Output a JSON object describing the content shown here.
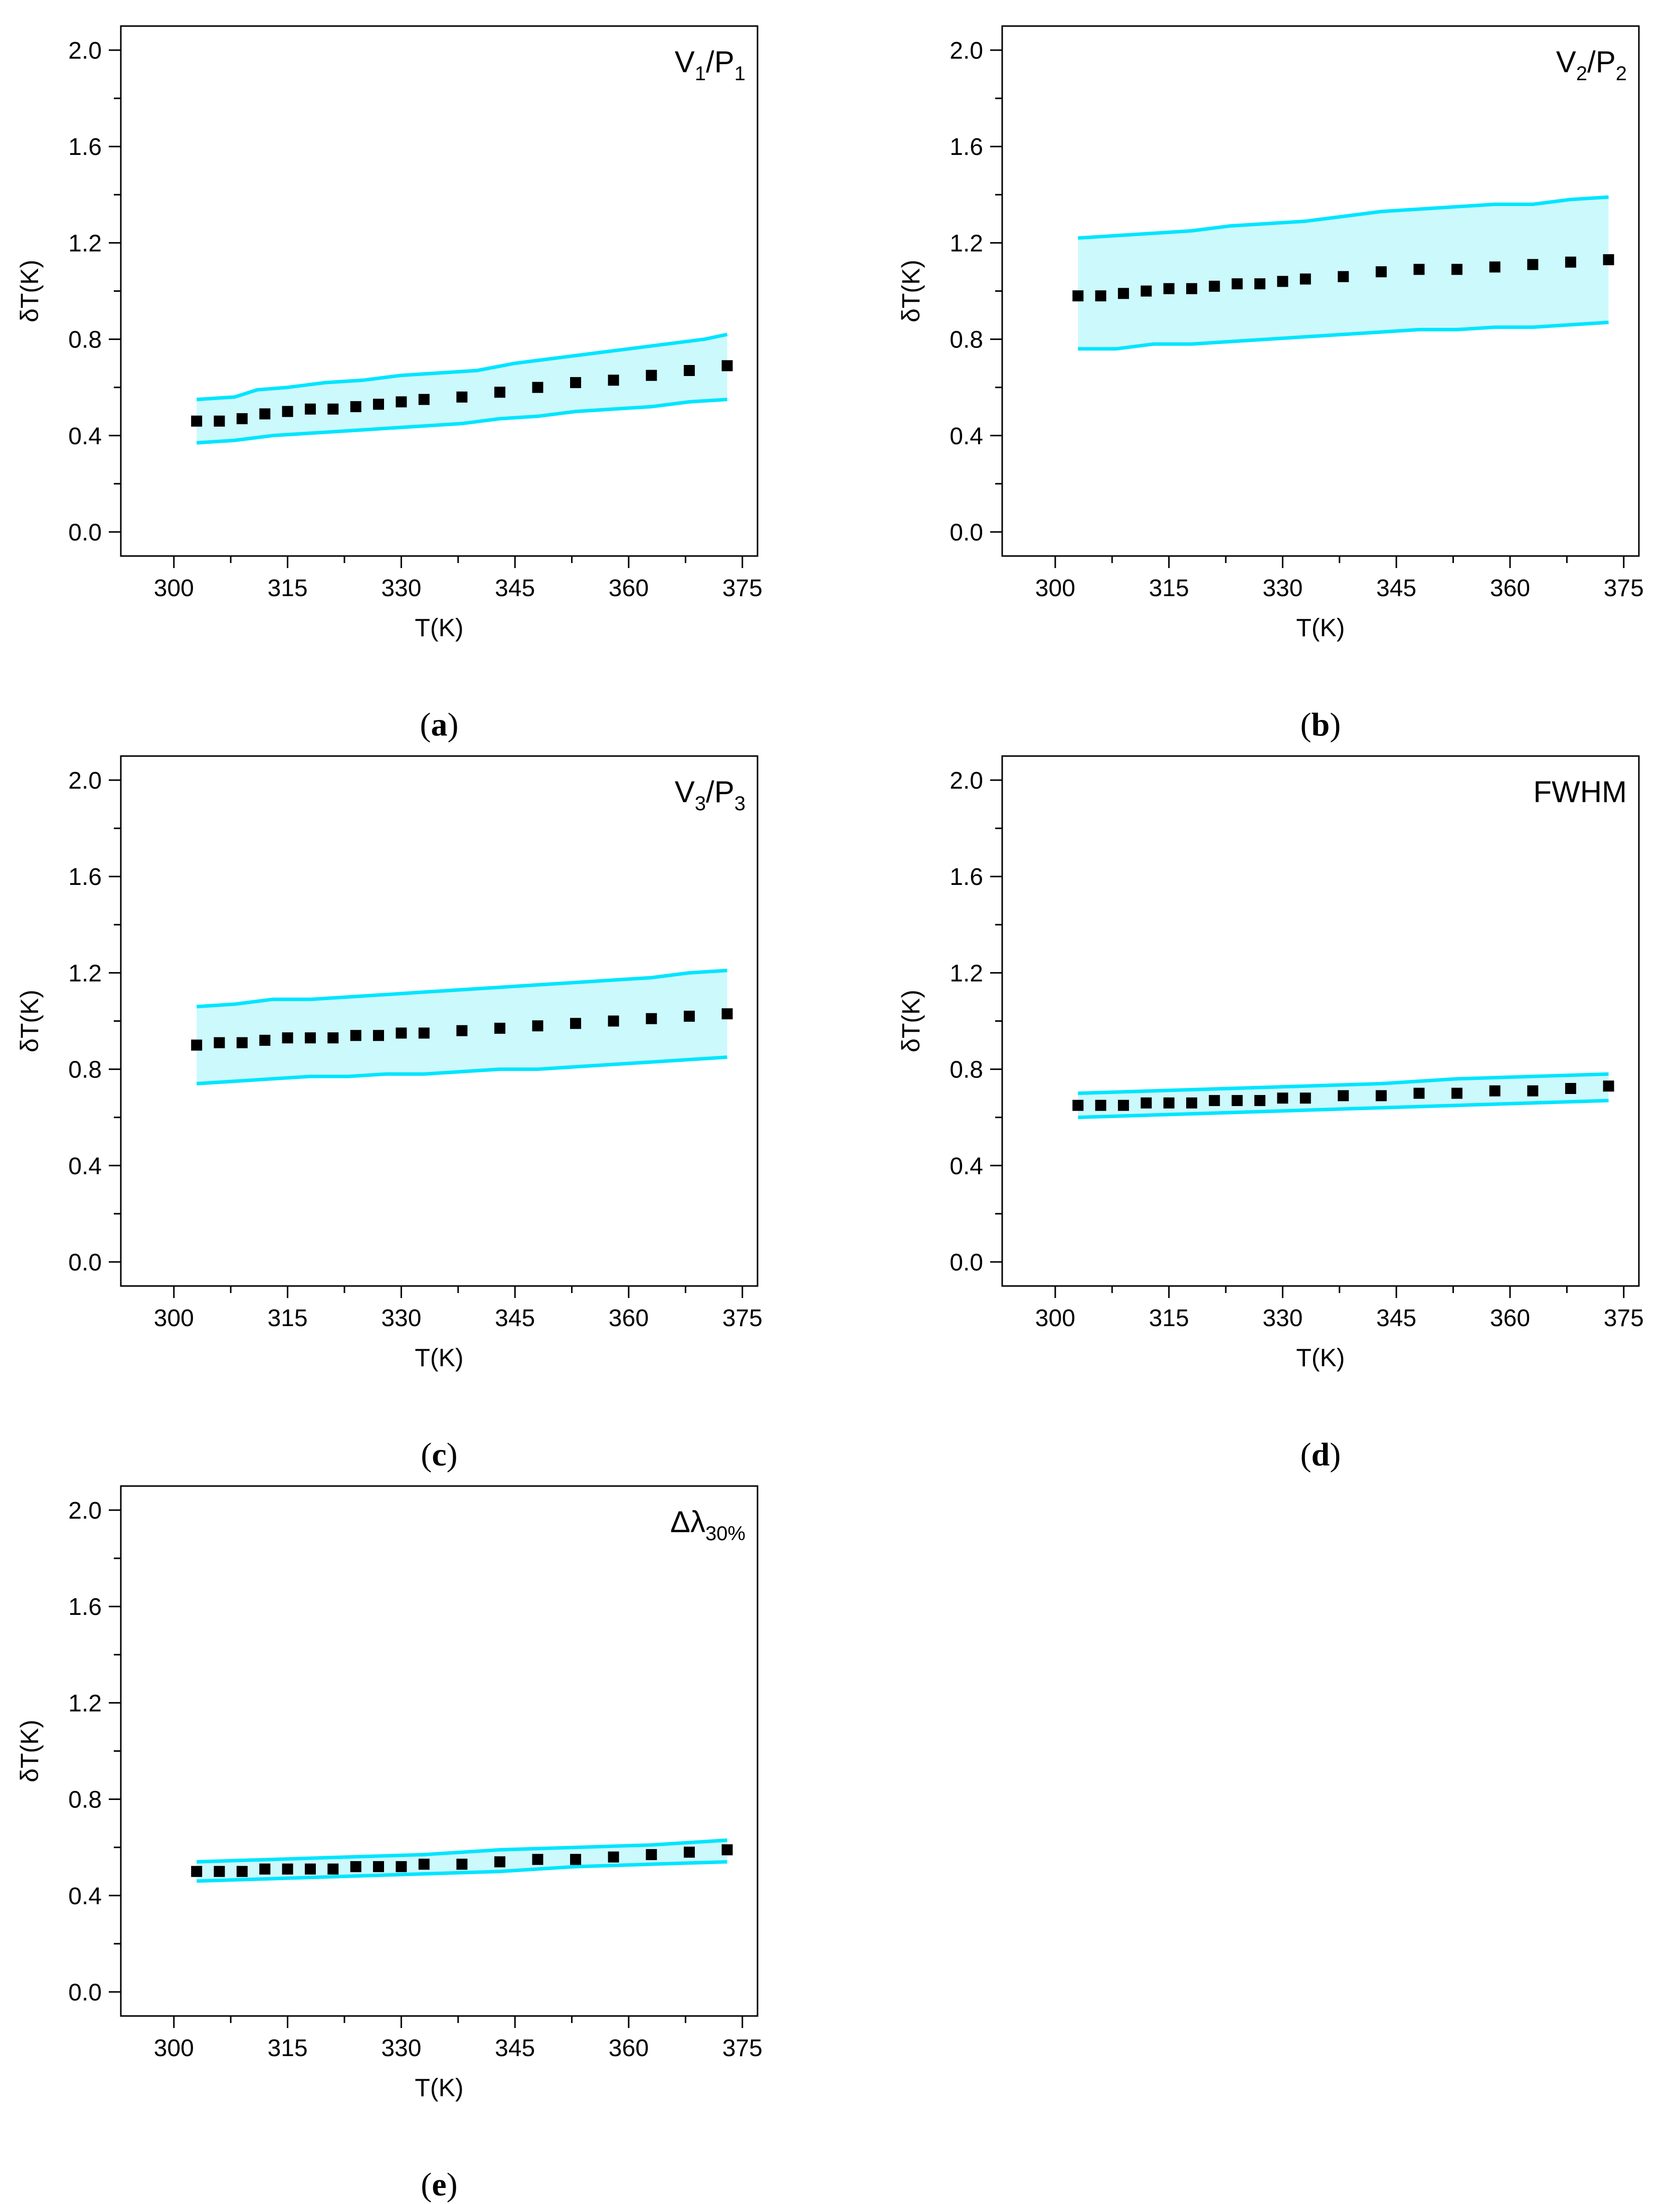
{
  "colors": {
    "band": "#00e5ff",
    "band_fill": "#ccf9fc",
    "marker": "#000000",
    "axis": "#000000"
  },
  "chart_data": [
    {
      "id": "a",
      "type": "scatter",
      "caption": {
        "open": "(",
        "letter": "a",
        "close": ")"
      },
      "label": {
        "main1": "V",
        "sub1": "1",
        "main2": "/P",
        "sub2": "1"
      },
      "xlabel": "T(K)",
      "ylabel": "δT(K)",
      "xlim": [
        293,
        377
      ],
      "ylim": [
        -0.1,
        2.1
      ],
      "xticks": [
        "300",
        "315",
        "330",
        "345",
        "360",
        "375"
      ],
      "yticks": [
        "0.0",
        "0.4",
        "0.8",
        "1.2",
        "1.6",
        "2.0"
      ],
      "series": [
        {
          "name": "δT",
          "x": [
            303,
            306,
            309,
            312,
            315,
            318,
            321,
            324,
            327,
            330,
            333,
            338,
            343,
            348,
            353,
            358,
            363,
            368,
            373
          ],
          "y": [
            0.46,
            0.46,
            0.47,
            0.49,
            0.5,
            0.51,
            0.51,
            0.52,
            0.53,
            0.54,
            0.55,
            0.56,
            0.58,
            0.6,
            0.62,
            0.63,
            0.65,
            0.67,
            0.69
          ]
        },
        {
          "name": "upper bound",
          "x": [
            303,
            308,
            311,
            315,
            320,
            325,
            330,
            335,
            340,
            345,
            350,
            355,
            360,
            365,
            370,
            373
          ],
          "y": [
            0.55,
            0.56,
            0.59,
            0.6,
            0.62,
            0.63,
            0.65,
            0.66,
            0.67,
            0.7,
            0.72,
            0.74,
            0.76,
            0.78,
            0.8,
            0.82
          ]
        },
        {
          "name": "lower bound",
          "x": [
            303,
            308,
            313,
            318,
            323,
            328,
            333,
            338,
            343,
            348,
            353,
            358,
            363,
            368,
            373
          ],
          "y": [
            0.37,
            0.38,
            0.4,
            0.41,
            0.42,
            0.43,
            0.44,
            0.45,
            0.47,
            0.48,
            0.5,
            0.51,
            0.52,
            0.54,
            0.55
          ]
        }
      ]
    },
    {
      "id": "b",
      "type": "scatter",
      "caption": {
        "open": "(",
        "letter": "b",
        "close": ")"
      },
      "label": {
        "main1": "V",
        "sub1": "2",
        "main2": "/P",
        "sub2": "2"
      },
      "xlabel": "T(K)",
      "ylabel": "δT(K)",
      "xlim": [
        293,
        377
      ],
      "ylim": [
        -0.1,
        2.1
      ],
      "xticks": [
        "300",
        "315",
        "330",
        "345",
        "360",
        "375"
      ],
      "yticks": [
        "0.0",
        "0.4",
        "0.8",
        "1.2",
        "1.6",
        "2.0"
      ],
      "series": [
        {
          "name": "δT",
          "x": [
            303,
            306,
            309,
            312,
            315,
            318,
            321,
            324,
            327,
            330,
            333,
            338,
            343,
            348,
            353,
            358,
            363,
            368,
            373
          ],
          "y": [
            0.98,
            0.98,
            0.99,
            1.0,
            1.01,
            1.01,
            1.02,
            1.03,
            1.03,
            1.04,
            1.05,
            1.06,
            1.08,
            1.09,
            1.09,
            1.1,
            1.11,
            1.12,
            1.13
          ]
        },
        {
          "name": "upper bound",
          "x": [
            303,
            308,
            313,
            318,
            323,
            328,
            333,
            338,
            343,
            348,
            353,
            358,
            363,
            368,
            373
          ],
          "y": [
            1.22,
            1.23,
            1.24,
            1.25,
            1.27,
            1.28,
            1.29,
            1.31,
            1.33,
            1.34,
            1.35,
            1.36,
            1.36,
            1.38,
            1.39
          ]
        },
        {
          "name": "lower bound",
          "x": [
            303,
            308,
            313,
            318,
            323,
            328,
            333,
            338,
            343,
            348,
            353,
            358,
            363,
            368,
            373
          ],
          "y": [
            0.76,
            0.76,
            0.78,
            0.78,
            0.79,
            0.8,
            0.81,
            0.82,
            0.83,
            0.84,
            0.84,
            0.85,
            0.85,
            0.86,
            0.87
          ]
        }
      ]
    },
    {
      "id": "c",
      "type": "scatter",
      "caption": {
        "open": "(",
        "letter": "c",
        "close": ")"
      },
      "label": {
        "main1": "V",
        "sub1": "3",
        "main2": "/P",
        "sub2": "3"
      },
      "xlabel": "T(K)",
      "ylabel": "δT(K)",
      "xlim": [
        293,
        377
      ],
      "ylim": [
        -0.1,
        2.1
      ],
      "xticks": [
        "300",
        "315",
        "330",
        "345",
        "360",
        "375"
      ],
      "yticks": [
        "0.0",
        "0.4",
        "0.8",
        "1.2",
        "1.6",
        "2.0"
      ],
      "series": [
        {
          "name": "δT",
          "x": [
            303,
            306,
            309,
            312,
            315,
            318,
            321,
            324,
            327,
            330,
            333,
            338,
            343,
            348,
            353,
            358,
            363,
            368,
            373
          ],
          "y": [
            0.9,
            0.91,
            0.91,
            0.92,
            0.93,
            0.93,
            0.93,
            0.94,
            0.94,
            0.95,
            0.95,
            0.96,
            0.97,
            0.98,
            0.99,
            1.0,
            1.01,
            1.02,
            1.03
          ]
        },
        {
          "name": "upper bound",
          "x": [
            303,
            308,
            313,
            318,
            323,
            328,
            333,
            338,
            343,
            348,
            353,
            358,
            363,
            368,
            373
          ],
          "y": [
            1.06,
            1.07,
            1.09,
            1.09,
            1.1,
            1.11,
            1.12,
            1.13,
            1.14,
            1.15,
            1.16,
            1.17,
            1.18,
            1.2,
            1.21
          ]
        },
        {
          "name": "lower bound",
          "x": [
            303,
            308,
            313,
            318,
            323,
            328,
            333,
            338,
            343,
            348,
            353,
            358,
            363,
            368,
            373
          ],
          "y": [
            0.74,
            0.75,
            0.76,
            0.77,
            0.77,
            0.78,
            0.78,
            0.79,
            0.8,
            0.8,
            0.81,
            0.82,
            0.83,
            0.84,
            0.85
          ]
        }
      ]
    },
    {
      "id": "d",
      "type": "scatter",
      "caption": {
        "open": "(",
        "letter": "d",
        "close": ")"
      },
      "label": {
        "text": "FWHM"
      },
      "xlabel": "T(K)",
      "ylabel": "δT(K)",
      "xlim": [
        293,
        377
      ],
      "ylim": [
        -0.1,
        2.1
      ],
      "xticks": [
        "300",
        "315",
        "330",
        "345",
        "360",
        "375"
      ],
      "yticks": [
        "0.0",
        "0.4",
        "0.8",
        "1.2",
        "1.6",
        "2.0"
      ],
      "series": [
        {
          "name": "δT",
          "x": [
            303,
            306,
            309,
            312,
            315,
            318,
            321,
            324,
            327,
            330,
            333,
            338,
            343,
            348,
            353,
            358,
            363,
            368,
            373
          ],
          "y": [
            0.65,
            0.65,
            0.65,
            0.66,
            0.66,
            0.66,
            0.67,
            0.67,
            0.67,
            0.68,
            0.68,
            0.69,
            0.69,
            0.7,
            0.7,
            0.71,
            0.71,
            0.72,
            0.73
          ]
        },
        {
          "name": "upper bound",
          "x": [
            303,
            313,
            323,
            333,
            343,
            353,
            363,
            373
          ],
          "y": [
            0.7,
            0.71,
            0.72,
            0.73,
            0.74,
            0.76,
            0.77,
            0.78
          ]
        },
        {
          "name": "lower bound",
          "x": [
            303,
            313,
            323,
            333,
            343,
            353,
            363,
            373
          ],
          "y": [
            0.6,
            0.61,
            0.62,
            0.63,
            0.64,
            0.65,
            0.66,
            0.67
          ]
        }
      ]
    },
    {
      "id": "e",
      "type": "scatter",
      "caption": {
        "open": "(",
        "letter": "e",
        "close": ")"
      },
      "label": {
        "main1": "Δλ",
        "sub1": "30%"
      },
      "xlabel": "T(K)",
      "ylabel": "δT(K)",
      "xlim": [
        293,
        377
      ],
      "ylim": [
        -0.1,
        2.1
      ],
      "xticks": [
        "300",
        "315",
        "330",
        "345",
        "360",
        "375"
      ],
      "yticks": [
        "0.0",
        "0.4",
        "0.8",
        "1.2",
        "1.6",
        "2.0"
      ],
      "series": [
        {
          "name": "δT",
          "x": [
            303,
            306,
            309,
            312,
            315,
            318,
            321,
            324,
            327,
            330,
            333,
            338,
            343,
            348,
            353,
            358,
            363,
            368,
            373
          ],
          "y": [
            0.5,
            0.5,
            0.5,
            0.51,
            0.51,
            0.51,
            0.51,
            0.52,
            0.52,
            0.52,
            0.53,
            0.53,
            0.54,
            0.55,
            0.55,
            0.56,
            0.57,
            0.58,
            0.59
          ]
        },
        {
          "name": "upper bound",
          "x": [
            303,
            313,
            323,
            333,
            343,
            353,
            363,
            373
          ],
          "y": [
            0.54,
            0.55,
            0.56,
            0.57,
            0.59,
            0.6,
            0.61,
            0.63
          ]
        },
        {
          "name": "lower bound",
          "x": [
            303,
            313,
            323,
            333,
            343,
            353,
            363,
            373
          ],
          "y": [
            0.46,
            0.47,
            0.48,
            0.49,
            0.5,
            0.52,
            0.53,
            0.54
          ]
        }
      ]
    }
  ]
}
